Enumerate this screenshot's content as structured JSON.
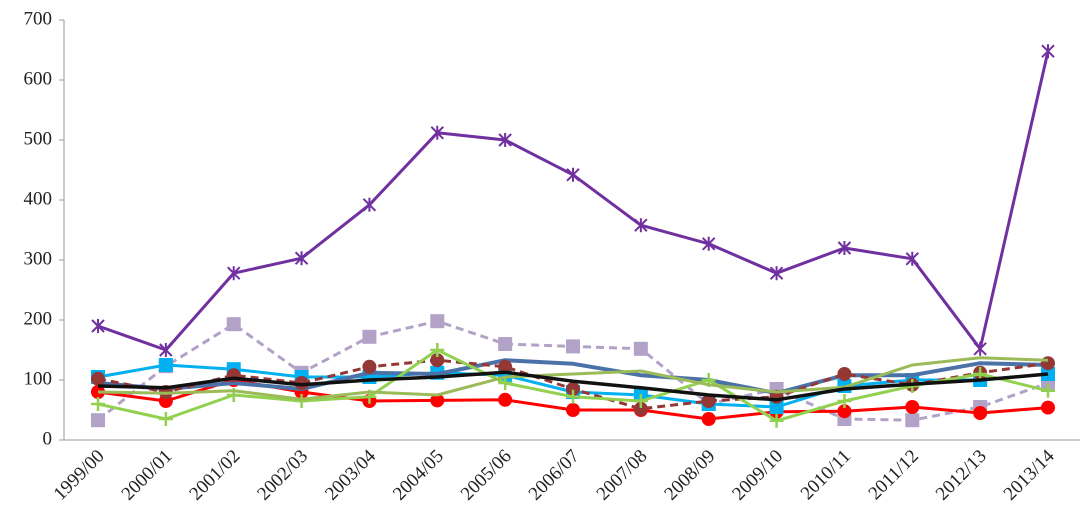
{
  "chart_data": {
    "type": "line",
    "categories": [
      "1999/00",
      "2000/01",
      "2001/02",
      "2002/03",
      "2003/04",
      "2004/05",
      "2005/06",
      "2006/07",
      "2007/08",
      "2008/09",
      "2009/10",
      "2010/11",
      "2011/12",
      "2012/13",
      "2013/14"
    ],
    "ylim": [
      0,
      700
    ],
    "yticks": [
      0,
      100,
      200,
      300,
      400,
      500,
      600,
      700
    ],
    "grid": false,
    "series": [
      {
        "color": "#7030a0",
        "marker": "x",
        "dash": false,
        "width": 3,
        "values": [
          190,
          150,
          278,
          303,
          392,
          512,
          500,
          442,
          358,
          327,
          278,
          320,
          302,
          152,
          648
        ]
      },
      {
        "color": "#b3a2c7",
        "marker": "square",
        "dash": true,
        "width": 3,
        "values": [
          33,
          123,
          193,
          112,
          172,
          198,
          160,
          156,
          152,
          60,
          85,
          35,
          33,
          55,
          95
        ]
      },
      {
        "color": "#ff0000",
        "marker": "circle",
        "dash": false,
        "width": 3,
        "values": [
          80,
          65,
          100,
          80,
          65,
          66,
          67,
          50,
          50,
          35,
          47,
          48,
          55,
          45,
          54
        ]
      },
      {
        "color": "#00b0f0",
        "marker": "square",
        "dash": false,
        "width": 3,
        "values": [
          105,
          125,
          118,
          105,
          105,
          112,
          108,
          80,
          75,
          60,
          55,
          90,
          100,
          100,
          110
        ]
      },
      {
        "color": "#4a72a8",
        "marker": "none",
        "dash": false,
        "width": 4,
        "values": [
          95,
          85,
          95,
          85,
          112,
          110,
          133,
          127,
          108,
          100,
          78,
          108,
          108,
          128,
          125
        ]
      },
      {
        "color": "#953735",
        "marker": "circle",
        "dash": true,
        "width": 3,
        "values": [
          102,
          80,
          108,
          95,
          122,
          133,
          122,
          85,
          52,
          65,
          72,
          110,
          92,
          112,
          128
        ]
      },
      {
        "color": "#92d050",
        "marker": "plus",
        "dash": false,
        "width": 3,
        "values": [
          60,
          35,
          75,
          65,
          72,
          150,
          95,
          72,
          65,
          100,
          32,
          65,
          90,
          110,
          82
        ]
      },
      {
        "color": "#9bbb59",
        "marker": "none",
        "dash": false,
        "width": 3,
        "values": [
          80,
          78,
          82,
          68,
          80,
          75,
          105,
          110,
          115,
          92,
          80,
          88,
          125,
          137,
          133
        ]
      },
      {
        "color": "#111111",
        "marker": "none",
        "dash": false,
        "width": 3.5,
        "values": [
          90,
          87,
          103,
          92,
          100,
          105,
          113,
          98,
          87,
          75,
          67,
          85,
          93,
          100,
          110
        ]
      }
    ]
  }
}
